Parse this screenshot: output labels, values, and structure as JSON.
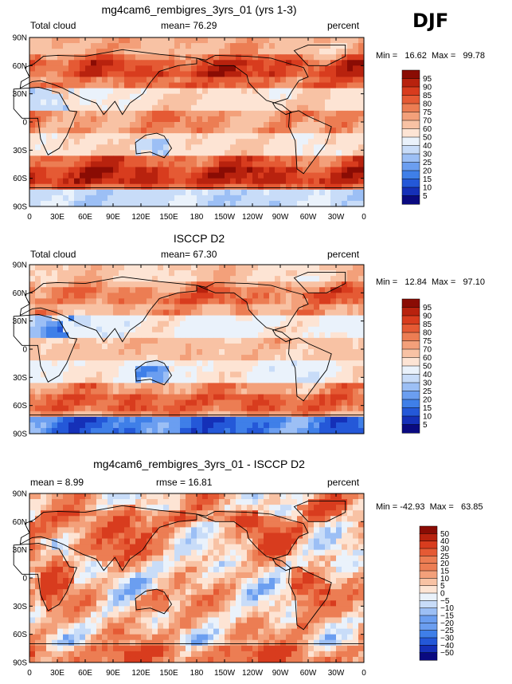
{
  "season": "DJF",
  "palettes": {
    "abs": [
      "#0a0a80",
      "#1530b8",
      "#2458d8",
      "#3f7fe8",
      "#6b9ef0",
      "#9cbff5",
      "#c8dcf8",
      "#eaf2fb",
      "#fde4d4",
      "#f8c2a4",
      "#f3a07a",
      "#ec7d53",
      "#e55a34",
      "#d83c1e",
      "#b8220e",
      "#8a0c04"
    ],
    "diff": [
      "#0a0a80",
      "#1530b8",
      "#2458d8",
      "#3f7fe8",
      "#6b9ef0",
      "#9cbff5",
      "#c8dcf8",
      "#eaf2fb",
      "#fde4d4",
      "#f8c2a4",
      "#f3a07a",
      "#ec7d53",
      "#e55a34",
      "#d83c1e",
      "#b8220e",
      "#8a0c04"
    ]
  },
  "axes": {
    "lat_labels": [
      "90N",
      "60N",
      "30N",
      "0",
      "30S",
      "60S",
      "90S"
    ],
    "lon_labels": [
      "0",
      "30E",
      "60E",
      "90E",
      "120E",
      "150E",
      "180",
      "150W",
      "120W",
      "90W",
      "60W",
      "30W",
      "0"
    ]
  },
  "chart_data": [
    {
      "type": "heatmap",
      "title": "mg4cam6_rembigres_3yrs_01 (yrs 1-3)",
      "left_label": "Total cloud",
      "center_label": "mean=  76.29",
      "right_label": "percent",
      "stat_line": "Min =   16.62  Max =   99.78",
      "colorbar_levels": [
        "95",
        "90",
        "85",
        "80",
        "75",
        "70",
        "60",
        "50",
        "40",
        "30",
        "25",
        "20",
        "15",
        "10",
        "5"
      ],
      "field": {
        "mean": 76.29,
        "min": 16.62,
        "max": 99.78
      },
      "palette": "abs",
      "seed": 1
    },
    {
      "type": "heatmap",
      "title": "ISCCP D2",
      "left_label": "Total cloud",
      "center_label": "mean=  67.30",
      "right_label": "percent",
      "stat_line": "Min =   12.84  Max =   97.10",
      "colorbar_levels": [
        "95",
        "90",
        "85",
        "80",
        "75",
        "70",
        "60",
        "50",
        "40",
        "30",
        "25",
        "20",
        "15",
        "10",
        "5"
      ],
      "field": {
        "mean": 67.3,
        "min": 12.84,
        "max": 97.1
      },
      "palette": "abs",
      "seed": 2
    },
    {
      "type": "heatmap",
      "title": "mg4cam6_rembigres_3yrs_01 - ISCCP D2",
      "left_label": "mean =   8.99",
      "center_label": "rmse =   16.81",
      "right_label": "percent",
      "stat_line": "Min = -42.93  Max =   63.85",
      "colorbar_levels": [
        "50",
        "40",
        "30",
        "25",
        "20",
        "15",
        "10",
        "5",
        "0",
        "−5",
        "−10",
        "−15",
        "−20",
        "−25",
        "−30",
        "−40",
        "−50"
      ],
      "field": {
        "mean": 8.99,
        "rmse": 16.81,
        "min": -42.93,
        "max": 63.85
      },
      "palette": "diff",
      "seed": 3
    }
  ]
}
